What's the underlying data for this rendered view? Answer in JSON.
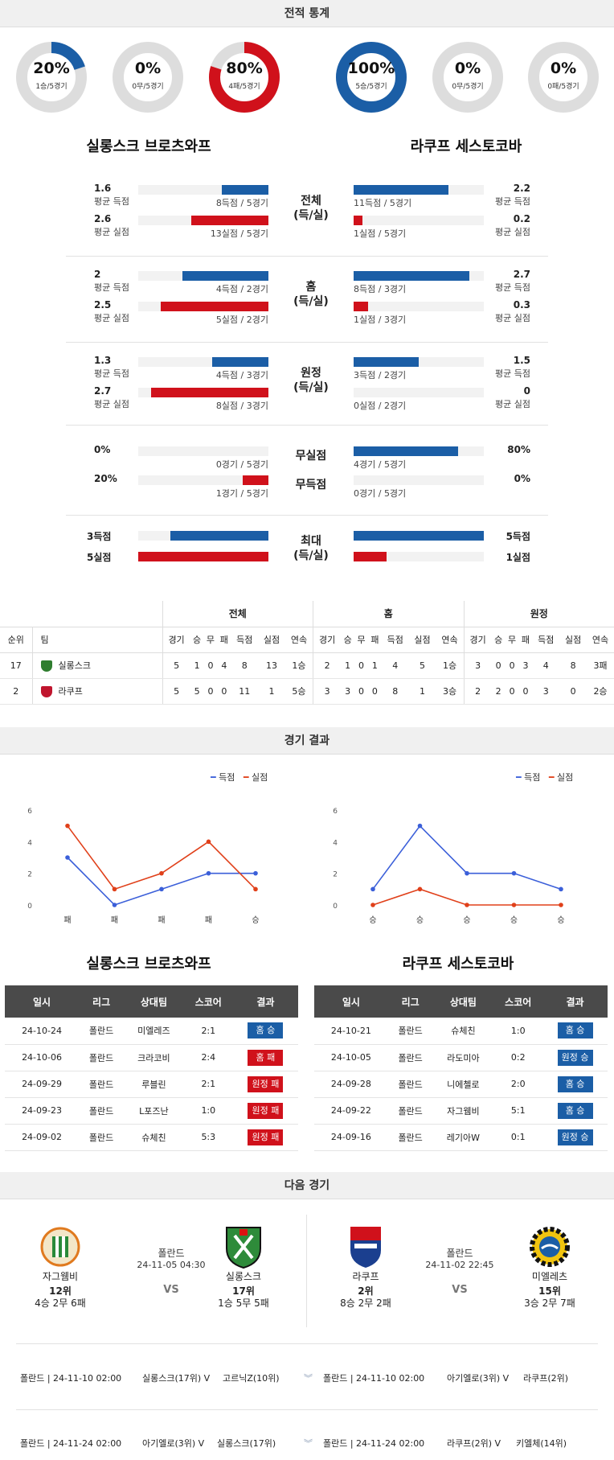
{
  "sections": {
    "stats_title": "전적 통계",
    "results_title": "경기 결과",
    "next_title": "다음 경기"
  },
  "colors": {
    "blue": "#1b5ea6",
    "red": "#d0111b",
    "grey": "#dddddd"
  },
  "donuts": [
    {
      "pct": "20%",
      "sub": "1승/5경기",
      "fraction": 0.2,
      "color": "blue"
    },
    {
      "pct": "0%",
      "sub": "0무/5경기",
      "fraction": 0,
      "color": "grey"
    },
    {
      "pct": "80%",
      "sub": "4패/5경기",
      "fraction": 0.8,
      "color": "red"
    },
    {
      "pct": "100%",
      "sub": "5승/5경기",
      "fraction": 1.0,
      "color": "blue"
    },
    {
      "pct": "0%",
      "sub": "0무/5경기",
      "fraction": 0,
      "color": "grey"
    },
    {
      "pct": "0%",
      "sub": "0패/5경기",
      "fraction": 0,
      "color": "grey"
    }
  ],
  "teams": {
    "left": "실롱스크 브로츠와프",
    "right": "라쿠프 세스토코바"
  },
  "stats": {
    "overall": {
      "label1": "전체",
      "label2": "(득/실)",
      "left_scored": {
        "val": "1.6",
        "lab": "평균 득점",
        "cnt": "8득점 / 5경기",
        "frac": 0.36
      },
      "left_conceded": {
        "val": "2.6",
        "lab": "평균 실점",
        "cnt": "13실점 / 5경기",
        "frac": 0.59
      },
      "right_scored": {
        "val": "2.2",
        "lab": "평균 득점",
        "cnt": "11득점 / 5경기",
        "frac": 0.73
      },
      "right_conceded": {
        "val": "0.2",
        "lab": "평균 실점",
        "cnt": "1실점 / 5경기",
        "frac": 0.07
      }
    },
    "home": {
      "label1": "홈",
      "label2": "(득/실)",
      "left_scored": {
        "val": "2",
        "lab": "평균 득점",
        "cnt": "4득점 / 2경기",
        "frac": 0.66
      },
      "left_conceded": {
        "val": "2.5",
        "lab": "평균 실점",
        "cnt": "5실점 / 2경기",
        "frac": 0.83
      },
      "right_scored": {
        "val": "2.7",
        "lab": "평균 득점",
        "cnt": "8득점 / 3경기",
        "frac": 0.89
      },
      "right_conceded": {
        "val": "0.3",
        "lab": "평균 실점",
        "cnt": "1실점 / 3경기",
        "frac": 0.11
      }
    },
    "away": {
      "label1": "원정",
      "label2": "(득/실)",
      "left_scored": {
        "val": "1.3",
        "lab": "평균 득점",
        "cnt": "4득점 / 3경기",
        "frac": 0.43
      },
      "left_conceded": {
        "val": "2.7",
        "lab": "평균 실점",
        "cnt": "8실점 / 3경기",
        "frac": 0.9
      },
      "right_scored": {
        "val": "1.5",
        "lab": "평균 득점",
        "cnt": "3득점 / 2경기",
        "frac": 0.5
      },
      "right_conceded": {
        "val": "0",
        "lab": "평균 실점",
        "cnt": "0실점 / 2경기",
        "frac": 0
      }
    },
    "clean": {
      "label_top": "무실점",
      "label_bottom": "무득점",
      "left_top": {
        "val": "0%",
        "cnt": "0경기 / 5경기",
        "frac": 0
      },
      "left_bottom": {
        "val": "20%",
        "cnt": "1경기 / 5경기",
        "frac": 0.2
      },
      "right_top": {
        "val": "80%",
        "cnt": "4경기 / 5경기",
        "frac": 0.8
      },
      "right_bottom": {
        "val": "0%",
        "cnt": "0경기 / 5경기",
        "frac": 0
      }
    },
    "max": {
      "label1": "최대",
      "label2": "(득/실)",
      "left_scored": {
        "val": "3득점",
        "frac": 0.75
      },
      "left_conceded": {
        "val": "5실점",
        "frac": 1.0
      },
      "right_scored": {
        "val": "5득점",
        "frac": 1.0
      },
      "right_conceded": {
        "val": "1실점",
        "frac": 0.25
      }
    }
  },
  "standings": {
    "groups": [
      "전체",
      "홈",
      "원정"
    ],
    "rank_label": "순위",
    "team_label": "팀",
    "cols": [
      "경기",
      "승",
      "무",
      "패",
      "득점",
      "실점",
      "연속"
    ],
    "rows": [
      {
        "rank": "17",
        "team": "실롱스크",
        "crest_color": "#2f7d2f",
        "overall": [
          "5",
          "1",
          "0",
          "4",
          "8",
          "13",
          "1승"
        ],
        "home": [
          "2",
          "1",
          "0",
          "1",
          "4",
          "5",
          "1승"
        ],
        "away": [
          "3",
          "0",
          "0",
          "3",
          "4",
          "8",
          "3패"
        ]
      },
      {
        "rank": "2",
        "team": "라쿠프",
        "crest_color": "#c0152e",
        "overall": [
          "5",
          "5",
          "0",
          "0",
          "11",
          "1",
          "5승"
        ],
        "home": [
          "3",
          "3",
          "0",
          "0",
          "8",
          "1",
          "3승"
        ],
        "away": [
          "2",
          "2",
          "0",
          "0",
          "3",
          "0",
          "2승"
        ]
      }
    ]
  },
  "chart_data": [
    {
      "type": "line",
      "categories": [
        "패",
        "패",
        "패",
        "패",
        "승"
      ],
      "series": [
        {
          "name": "득점",
          "values": [
            3,
            0,
            1,
            2,
            2
          ],
          "color": "#3b5fd9"
        },
        {
          "name": "실점",
          "values": [
            5,
            1,
            2,
            4,
            1
          ],
          "color": "#e0401a"
        }
      ],
      "ylim": [
        0,
        6
      ],
      "yticks": [
        "0",
        "2",
        "4",
        "6"
      ],
      "legend": "top-right"
    },
    {
      "type": "line",
      "categories": [
        "승",
        "승",
        "승",
        "승",
        "승"
      ],
      "series": [
        {
          "name": "득점",
          "values": [
            1,
            5,
            2,
            2,
            1
          ],
          "color": "#3b5fd9"
        },
        {
          "name": "실점",
          "values": [
            0,
            1,
            0,
            0,
            0
          ],
          "color": "#e0401a"
        }
      ],
      "ylim": [
        0,
        6
      ],
      "yticks": [
        "0",
        "2",
        "4",
        "6"
      ],
      "legend": "top-right"
    }
  ],
  "results": {
    "headers": [
      "일시",
      "리그",
      "상대팀",
      "스코어",
      "결과"
    ],
    "left": [
      {
        "date": "24-10-24",
        "league": "폴란드",
        "opp": "미엘레즈",
        "score": "2:1",
        "result": "홈 승",
        "color": "blue"
      },
      {
        "date": "24-10-06",
        "league": "폴란드",
        "opp": "크라코비",
        "score": "2:4",
        "result": "홈 패",
        "color": "red"
      },
      {
        "date": "24-09-29",
        "league": "폴란드",
        "opp": "루블린",
        "score": "2:1",
        "result": "원정 패",
        "color": "red"
      },
      {
        "date": "24-09-23",
        "league": "폴란드",
        "opp": "L포즈난",
        "score": "1:0",
        "result": "원정 패",
        "color": "red"
      },
      {
        "date": "24-09-02",
        "league": "폴란드",
        "opp": "슈체친",
        "score": "5:3",
        "result": "원정 패",
        "color": "red"
      }
    ],
    "right": [
      {
        "date": "24-10-21",
        "league": "폴란드",
        "opp": "슈체친",
        "score": "1:0",
        "result": "홈 승",
        "color": "blue"
      },
      {
        "date": "24-10-05",
        "league": "폴란드",
        "opp": "라도미아",
        "score": "0:2",
        "result": "원정 승",
        "color": "blue"
      },
      {
        "date": "24-09-28",
        "league": "폴란드",
        "opp": "니에첼로",
        "score": "2:0",
        "result": "홈 승",
        "color": "blue"
      },
      {
        "date": "24-09-22",
        "league": "폴란드",
        "opp": "자그웸비",
        "score": "5:1",
        "result": "홈 승",
        "color": "blue"
      },
      {
        "date": "24-09-16",
        "league": "폴란드",
        "opp": "레기아W",
        "score": "0:1",
        "result": "원정 승",
        "color": "blue"
      }
    ]
  },
  "next": {
    "left": {
      "home": {
        "name": "자그웸비",
        "rank": "12위",
        "record": "4승 2무 6패"
      },
      "league": "폴란드",
      "datetime": "24-11-05 04:30",
      "vs": "VS",
      "away": {
        "name": "실롱스크",
        "rank": "17위",
        "record": "1승 5무 5패"
      }
    },
    "right": {
      "home": {
        "name": "라쿠프",
        "rank": "2위",
        "record": "8승 2무 2패"
      },
      "league": "폴란드",
      "datetime": "24-11-02 22:45",
      "vs": "VS",
      "away": {
        "name": "미엘레츠",
        "rank": "15위",
        "record": "3승 2무 7패"
      }
    }
  },
  "fixtures": {
    "row1": {
      "left_meta": "폴란드 | 24-11-10 02:00",
      "left_match": "실롱스크(17위) V",
      "left_opp": "고르닉Z(10위)",
      "right_meta": "폴란드 | 24-11-10 02:00",
      "right_match": "아기엘로(3위) V",
      "right_opp": "라쿠프(2위)"
    },
    "row2": {
      "left_meta": "폴란드 | 24-11-24 02:00",
      "left_match": "아기엘로(3위) V",
      "left_opp": "실롱스크(17위)",
      "right_meta": "폴란드 | 24-11-24 02:00",
      "right_match": "라쿠프(2위) V",
      "right_opp": "키엘체(14위)"
    }
  }
}
